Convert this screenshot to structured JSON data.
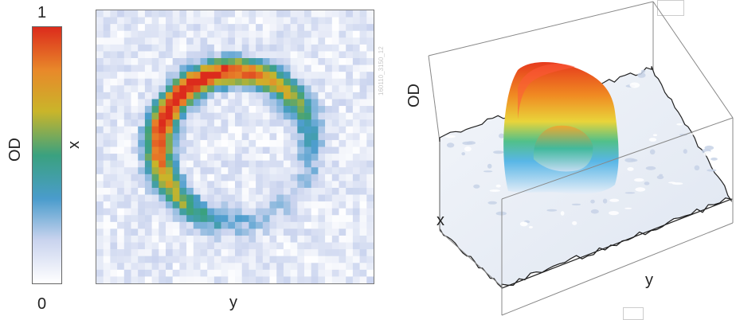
{
  "colorbar": {
    "max_label": "1",
    "min_label": "0",
    "axis_label": "OD",
    "colors": [
      "#ffffff",
      "#c9d3ee",
      "#4a9ccc",
      "#3aa17f",
      "#c9b52a",
      "#e8892a",
      "#dc2b1c"
    ]
  },
  "chart_data": [
    {
      "type": "heatmap",
      "xlabel": "x",
      "ylabel": "y",
      "value_range": [
        0,
        1
      ],
      "description_values": {
        "ring_center": [
          0.5,
          0.5
        ],
        "ring_radius_fraction": 0.25,
        "peak_od": 1.0,
        "background_od": 0.05
      },
      "watermark": "160110_3150_12"
    },
    {
      "type": "surface",
      "xlabel": "x",
      "ylabel": "y",
      "zlabel": "OD",
      "value_range": [
        0,
        1
      ]
    }
  ]
}
